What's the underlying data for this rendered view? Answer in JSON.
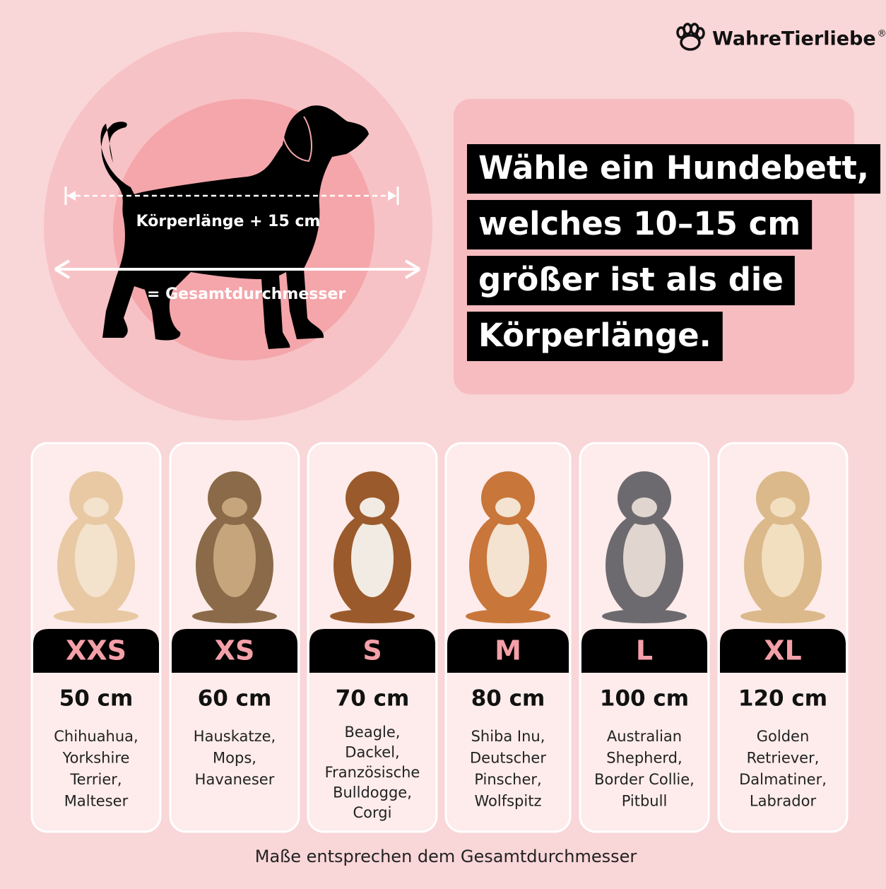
{
  "logo": {
    "name": "WahreTierliebe",
    "mark": "®"
  },
  "diagram": {
    "body_label": "Körperlänge + 15 cm",
    "total_label": "= Gesamtdurchmesser"
  },
  "headline": {
    "lines": [
      "Wähle ein Hundebett,",
      "welches 10–15 cm",
      "größer ist als die",
      "Körperlänge."
    ]
  },
  "cards": [
    {
      "size": "XXS",
      "measure": "50 cm",
      "breeds": [
        "Chihuahua,",
        "Yorkshire",
        "Terrier,",
        "Malteser"
      ]
    },
    {
      "size": "XS",
      "measure": "60 cm",
      "breeds": [
        "Hauskatze,",
        "Mops,",
        "Havaneser"
      ]
    },
    {
      "size": "S",
      "measure": "70 cm",
      "breeds": [
        "Beagle,",
        "Dackel,",
        "Französische",
        "Bulldogge,",
        "Corgi"
      ]
    },
    {
      "size": "M",
      "measure": "80 cm",
      "breeds": [
        "Shiba Inu,",
        "Deutscher",
        "Pinscher,",
        "Wolfspitz"
      ]
    },
    {
      "size": "L",
      "measure": "100 cm",
      "breeds": [
        "Australian",
        "Shepherd,",
        "Border Collie,",
        "Pitbull"
      ]
    },
    {
      "size": "XL",
      "measure": "120 cm",
      "breeds": [
        "Golden",
        "Retriever,",
        "Dalmatiner,",
        "Labrador"
      ]
    }
  ],
  "footer": {
    "note": "Maße entsprechen dem Gesamtdurchmesser"
  }
}
